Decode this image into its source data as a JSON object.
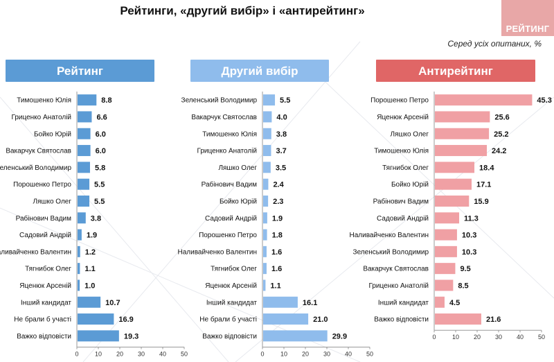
{
  "title": "Рейтинги, «другий вибір» і «антирейтинг»",
  "logo_text": "РЕЙТИНГ",
  "subtitle": "Серед усіх опитаних, %",
  "colors": {
    "rating_header": "#5b9bd5",
    "rating_bar": "#5b9bd5",
    "second_header": "#8fbcec",
    "second_bar": "#8fbcec",
    "anti_header": "#e06666",
    "anti_bar": "#f0a0a4",
    "logo_bg": "#e8a7a7"
  },
  "chart_data": [
    {
      "type": "bar",
      "orientation": "horizontal",
      "title": "Рейтинг",
      "categories": [
        "Тимошенко Юлія",
        "Гриценко Анатолій",
        "Бойко Юрій",
        "Вакарчук Святослав",
        "Зеленський Володимир",
        "Порошенко Петро",
        "Ляшко Олег",
        "Рабінович Вадим",
        "Садовий Андрій",
        "Наливайченко Валентин",
        "Тягнибок Олег",
        "Яценюк Арсеній",
        "Інший кандидат",
        "Не брали б участі",
        "Важко відповісти"
      ],
      "values": [
        8.8,
        6.6,
        6.0,
        6.0,
        5.8,
        5.5,
        5.5,
        3.8,
        1.9,
        1.2,
        1.1,
        1.0,
        10.7,
        16.9,
        19.3
      ],
      "value_labels": [
        "8.8",
        "6.6",
        "6.0",
        "6.0",
        "5.8",
        "5.5",
        "5.5",
        "3.8",
        "1.9",
        "1.2",
        "1.1",
        "1.0",
        "10.7",
        "16.9",
        "19.3"
      ],
      "xlim": [
        0,
        50
      ],
      "ticks": [
        "0",
        "10",
        "20",
        "30",
        "40",
        "50"
      ],
      "color_key": "rating_bar",
      "header_color_key": "rating_header"
    },
    {
      "type": "bar",
      "orientation": "horizontal",
      "title": "Другий вибір",
      "categories": [
        "Зеленський Володимир",
        "Вакарчук Святослав",
        "Тимошенко Юлія",
        "Гриценко Анатолій",
        "Ляшко Олег",
        "Рабінович Вадим",
        "Бойко Юрій",
        "Садовий Андрій",
        "Порошенко Петро",
        "Наливайченко Валентин",
        "Тягнибок Олег",
        "Яценюк Арсеній",
        "Інший кандидат",
        "Не брали б участі",
        "Важко відповісти"
      ],
      "values": [
        5.5,
        4.0,
        3.8,
        3.7,
        3.5,
        2.4,
        2.3,
        1.9,
        1.8,
        1.6,
        1.6,
        1.1,
        16.1,
        21.0,
        29.9
      ],
      "value_labels": [
        "5.5",
        "4.0",
        "3.8",
        "3.7",
        "3.5",
        "2.4",
        "2.3",
        "1.9",
        "1.8",
        "1.6",
        "1.6",
        "1.1",
        "16.1",
        "21.0",
        "29.9"
      ],
      "xlim": [
        0,
        50
      ],
      "ticks": [
        "0",
        "10",
        "20",
        "30",
        "40",
        "50"
      ],
      "color_key": "second_bar",
      "header_color_key": "second_header"
    },
    {
      "type": "bar",
      "orientation": "horizontal",
      "title": "Антирейтинг",
      "categories": [
        "Порошенко Петро",
        "Яценюк Арсеній",
        "Ляшко Олег",
        "Тимошенко Юлія",
        "Тягнибок Олег",
        "Бойко Юрій",
        "Рабінович Вадим",
        "Садовий Андрій",
        "Наливайченко Валентин",
        "Зеленський Володимир",
        "Вакарчук Святослав",
        "Гриценко Анатолій",
        "Інший кандидат",
        "Важко відповісти"
      ],
      "values": [
        45.3,
        25.6,
        25.2,
        24.2,
        18.4,
        17.1,
        15.9,
        11.3,
        10.3,
        10.3,
        9.5,
        8.5,
        4.5,
        21.6
      ],
      "value_labels": [
        "45.3",
        "25.6",
        "25.2",
        "24.2",
        "18.4",
        "17.1",
        "15.9",
        "11.3",
        "10.3",
        "10.3",
        "9.5",
        "8.5",
        "4.5",
        "21.6"
      ],
      "xlim": [
        0,
        50
      ],
      "ticks": [
        "0",
        "10",
        "20",
        "30",
        "40",
        "50"
      ],
      "color_key": "anti_bar",
      "header_color_key": "anti_header"
    }
  ]
}
